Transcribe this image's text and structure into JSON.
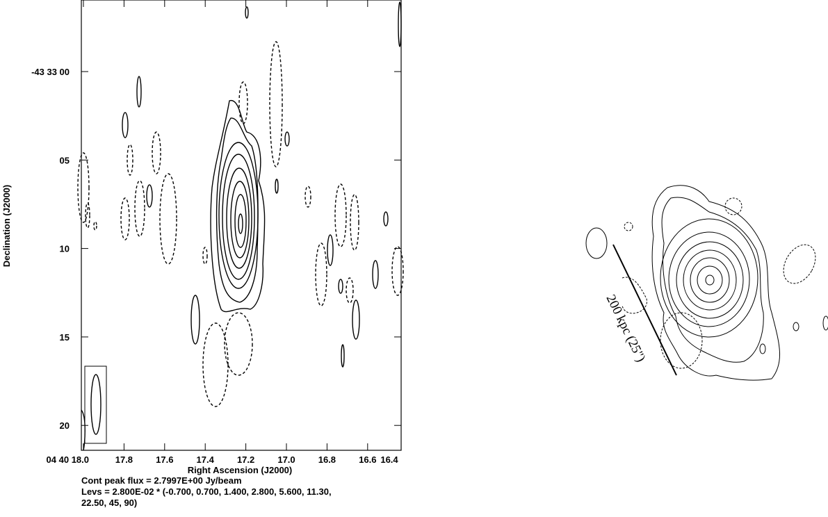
{
  "left_panel": {
    "x_axis_label": "Right Ascension (J2000)",
    "y_axis_label": "Declination (J2000)",
    "x_tick_labels": [
      "04 40 18.0",
      "17.8",
      "17.6",
      "17.4",
      "17.2",
      "17.0",
      "16.8",
      "16.6",
      "16.4"
    ],
    "y_tick_labels": [
      "-43 33 00",
      "05",
      "10",
      "15",
      "20"
    ],
    "notes": [
      "Cont peak flux =  2.7997E+00 Jy/beam",
      "Levs = 2.800E-02 * (-0.700, 0.700, 1.400, 2.800, 5.600, 11.30,",
      "22.50, 45, 90)"
    ]
  },
  "right_panel": {
    "scale_bar_label": "200 kpc (25\")"
  }
}
